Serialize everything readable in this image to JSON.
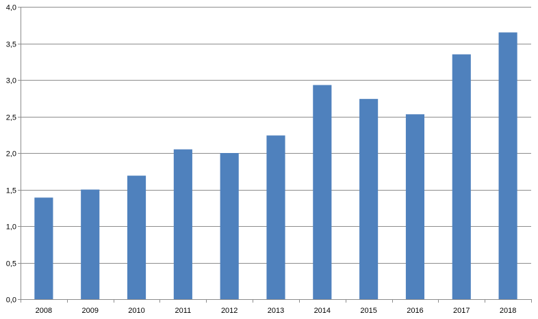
{
  "chart_data": {
    "type": "bar",
    "title": "",
    "xlabel": "",
    "ylabel": "",
    "categories": [
      "2008",
      "2009",
      "2010",
      "2011",
      "2012",
      "2013",
      "2014",
      "2015",
      "2016",
      "2017",
      "2018"
    ],
    "values": [
      1.39,
      1.5,
      1.69,
      2.05,
      2.0,
      2.24,
      2.93,
      2.74,
      2.53,
      3.35,
      3.65
    ],
    "ylim": [
      0,
      4
    ],
    "yticks": [
      0,
      0.5,
      1,
      1.5,
      2,
      2.5,
      3,
      3.5,
      4
    ],
    "ytick_labels": [
      "0,0",
      "0,5",
      "1,0",
      "1,5",
      "2,0",
      "2,5",
      "3,0",
      "3,5",
      "4,0"
    ],
    "grid": true,
    "legend": "none",
    "colors": {
      "bar": "#4f81bd",
      "grid": "#8c8c8c",
      "axis": "#8c8c8c",
      "text": "#000000"
    }
  }
}
